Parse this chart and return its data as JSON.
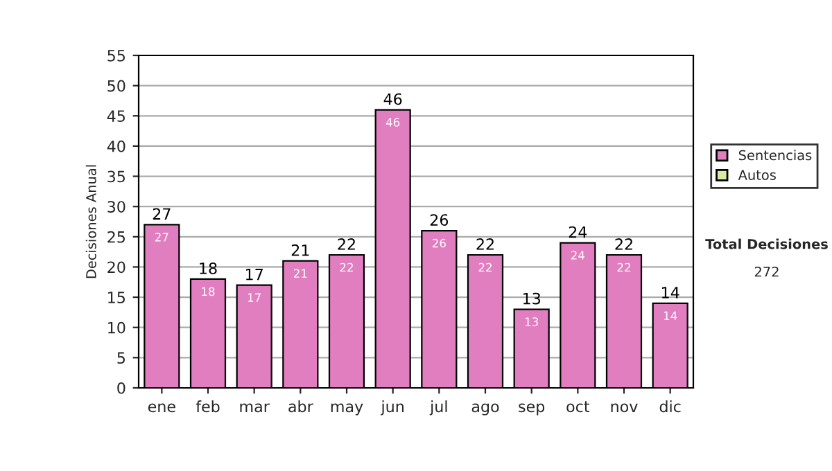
{
  "chart_data": {
    "type": "bar",
    "ylabel": "Decisiones Anual",
    "categories": [
      "ene",
      "feb",
      "mar",
      "abr",
      "may",
      "jun",
      "jul",
      "ago",
      "sep",
      "oct",
      "nov",
      "dic"
    ],
    "series": [
      {
        "name": "Sentencias",
        "color": "#e07ec0",
        "values": [
          27,
          18,
          17,
          21,
          22,
          46,
          26,
          22,
          13,
          24,
          22,
          14
        ],
        "value_labels": [
          "27",
          "18",
          "17",
          "21",
          "22",
          "46",
          "26",
          "22",
          "13",
          "24",
          "22",
          "14"
        ]
      },
      {
        "name": "Autos",
        "color": "#d8eca0",
        "values": [
          null,
          null,
          null,
          null,
          null,
          null,
          null,
          null,
          null,
          null,
          null,
          null
        ]
      }
    ],
    "ylim": [
      0,
      55
    ],
    "yticks": [
      0,
      5,
      10,
      15,
      20,
      25,
      30,
      35,
      40,
      45,
      50,
      55
    ],
    "grid": "y",
    "legend": "right",
    "annotations": [
      "Total Decisiones",
      "272",
      {
        "text": "27",
        "x": "ene",
        "y": 27
      },
      {
        "text": "18",
        "x": "feb",
        "y": 18
      },
      {
        "text": "17",
        "x": "mar",
        "y": 17
      },
      {
        "text": "21",
        "x": "abr",
        "y": 21
      },
      {
        "text": "22",
        "x": "may",
        "y": 22
      },
      {
        "text": "46",
        "x": "jun",
        "y": 46
      },
      {
        "text": "26",
        "x": "jul",
        "y": 26
      },
      {
        "text": "22",
        "x": "ago",
        "y": 22
      },
      {
        "text": "13",
        "x": "sep",
        "y": 13
      },
      {
        "text": "24",
        "x": "oct",
        "y": 24
      },
      {
        "text": "22",
        "x": "nov",
        "y": 22
      },
      {
        "text": "14",
        "x": "dic",
        "y": 14
      }
    ]
  }
}
